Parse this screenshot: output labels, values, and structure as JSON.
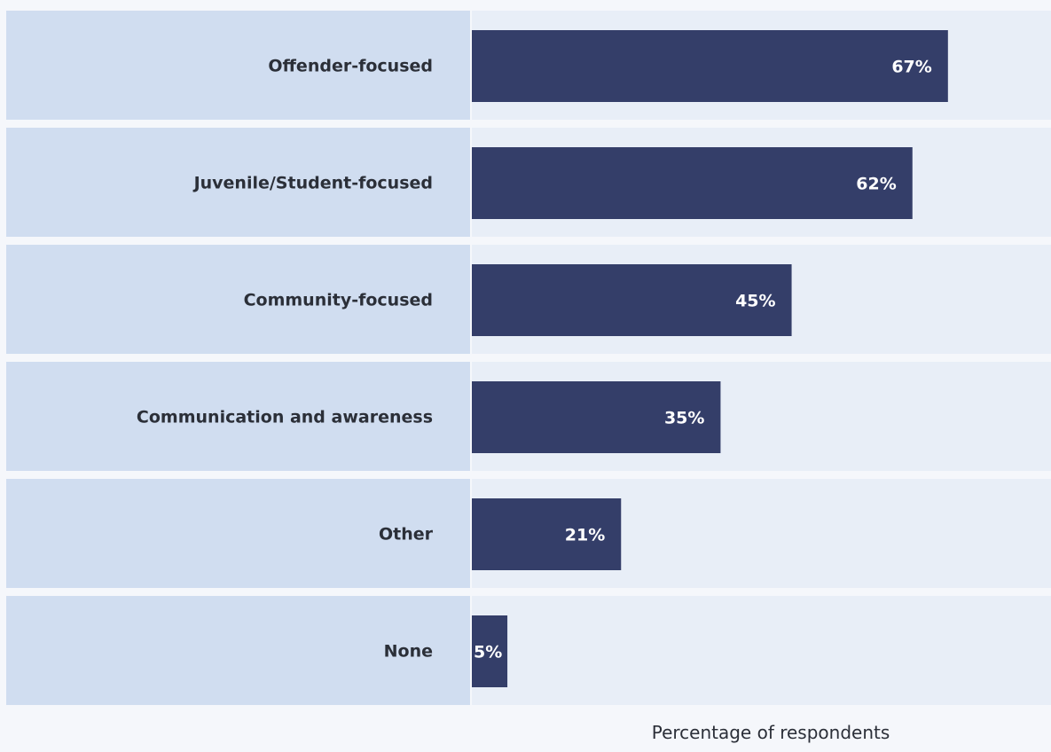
{
  "chart_data": {
    "type": "bar",
    "orientation": "horizontal",
    "categories": [
      "Offender-focused",
      "Juvenile/Student-focused",
      "Community-focused",
      "Communication and awareness",
      "Other",
      "None"
    ],
    "values": [
      67,
      62,
      45,
      35,
      21,
      5
    ],
    "value_labels": [
      "67%",
      "62%",
      "45%",
      "35%",
      "21%",
      "5%"
    ],
    "title": "",
    "xlabel": "Percentage of respondents",
    "ylabel": "",
    "xlim": [
      0,
      81.5
    ],
    "grid": false,
    "legend": "none",
    "colors": {
      "bar": "#343e69",
      "label_band": "#d0ddf0",
      "plot_band": "#e8eef7",
      "background": "#f5f7fb"
    }
  }
}
